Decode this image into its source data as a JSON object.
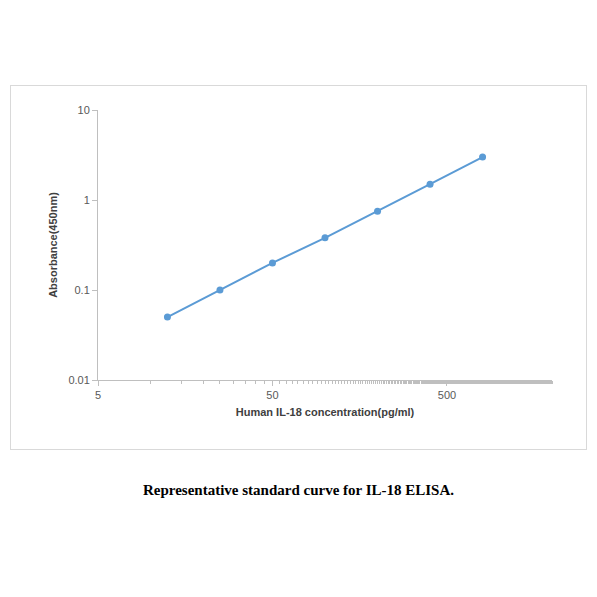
{
  "chart_data": {
    "type": "line",
    "title": "Representative standard curve for IL-18 ELISA.",
    "x_label": "Human IL-18 concentration(pg/ml)",
    "y_label": "Absorbance(450nm)",
    "x": [
      12.5,
      25,
      50,
      100,
      200,
      400,
      800
    ],
    "values": [
      0.05,
      0.1,
      0.2,
      0.38,
      0.75,
      1.5,
      3.0
    ],
    "color": "#5b9bd5",
    "marker": "circle",
    "line_style": "solid",
    "log": true,
    "grid": false,
    "xlim": [
      5,
      2000
    ],
    "xticks": [
      5,
      50,
      500
    ],
    "ylim": [
      0.01,
      10
    ],
    "yticks": [
      0.01,
      0.1,
      1,
      10
    ]
  }
}
